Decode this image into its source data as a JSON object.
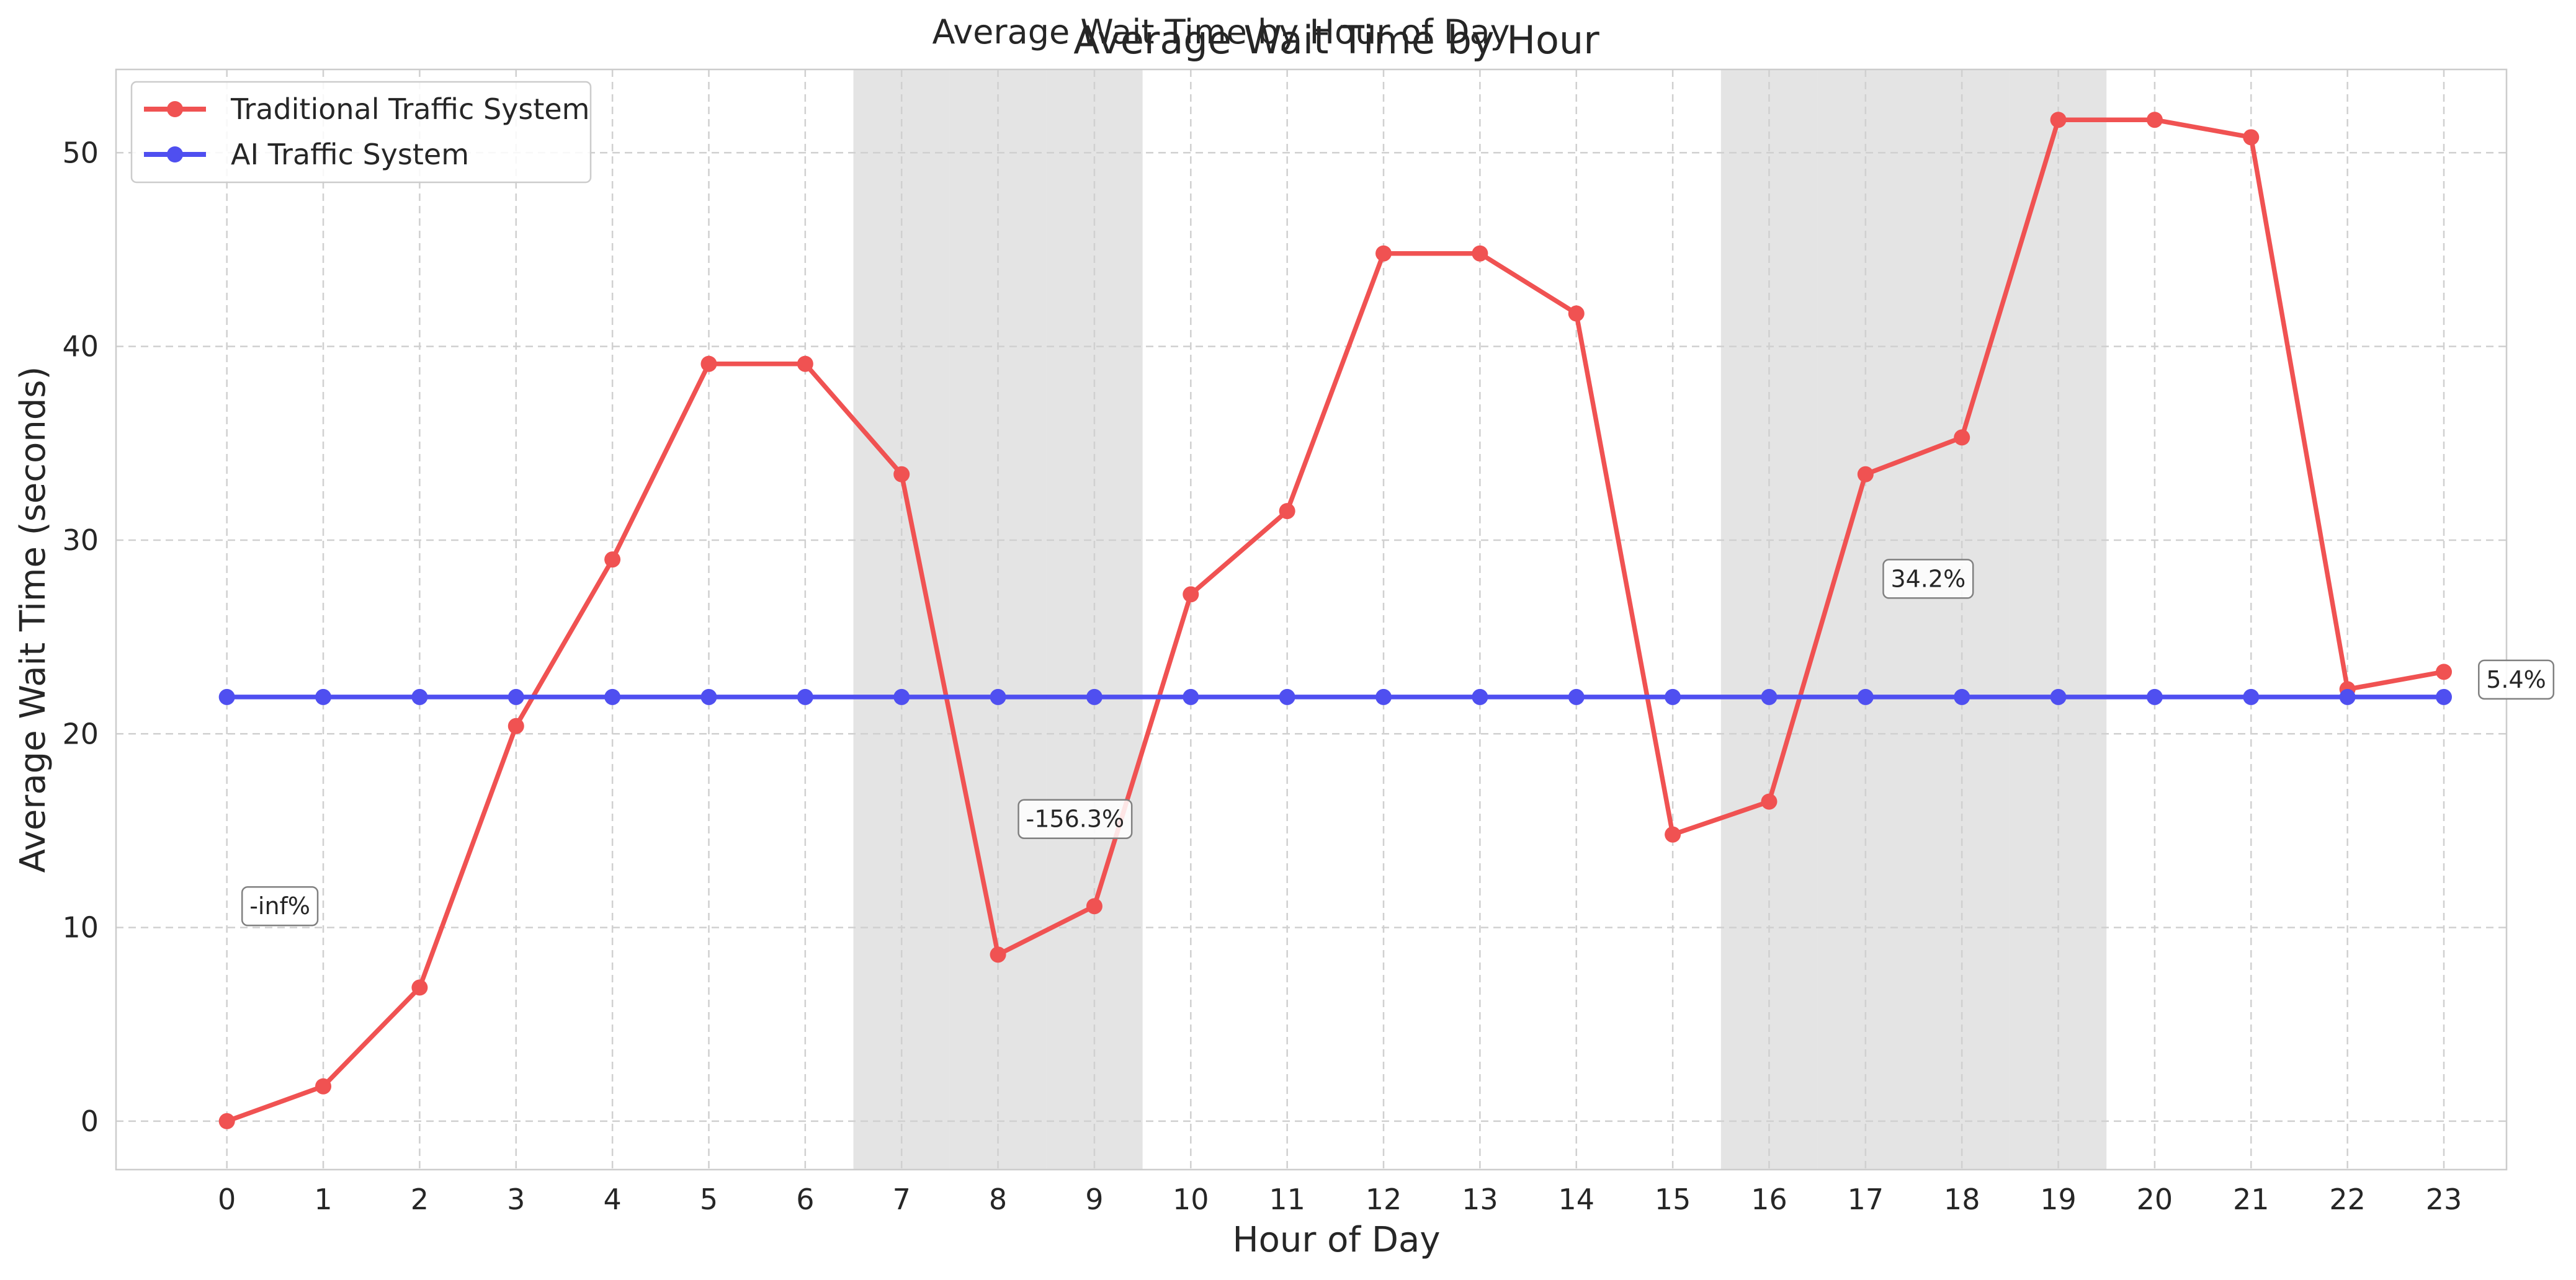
{
  "chart_data": {
    "type": "line",
    "title": "Average Wait Time by Hour",
    "subtitle": "Average Wait Time by Hour of Day",
    "xlabel": "Hour of Day",
    "ylabel": "Average Wait Time (seconds)",
    "x": [
      0,
      1,
      2,
      3,
      4,
      5,
      6,
      7,
      8,
      9,
      10,
      11,
      12,
      13,
      14,
      15,
      16,
      17,
      18,
      19,
      20,
      21,
      22,
      23
    ],
    "xlim": [
      -1.15,
      23.65
    ],
    "ylim": [
      -2.5,
      54.3
    ],
    "yticks": [
      0,
      10,
      20,
      30,
      40,
      50
    ],
    "grid": true,
    "legend_position": "upper left",
    "series": [
      {
        "name": "Traditional Traffic System",
        "color": "#f05252",
        "values": [
          0.0,
          1.8,
          6.9,
          20.4,
          29.0,
          39.1,
          39.1,
          33.4,
          8.6,
          11.1,
          27.2,
          31.5,
          44.8,
          44.8,
          41.7,
          14.8,
          16.5,
          33.4,
          35.3,
          51.7,
          51.7,
          50.8,
          22.3,
          23.2
        ]
      },
      {
        "name": "AI Traffic System",
        "color": "#4f4ff0",
        "values": [
          21.9,
          21.9,
          21.9,
          21.9,
          21.9,
          21.9,
          21.9,
          21.9,
          21.9,
          21.9,
          21.9,
          21.9,
          21.9,
          21.9,
          21.9,
          21.9,
          21.9,
          21.9,
          21.9,
          21.9,
          21.9,
          21.9,
          21.9,
          21.9
        ]
      }
    ],
    "shaded_hours": [
      7,
      8,
      9,
      16,
      17,
      18,
      19
    ],
    "annotations": [
      {
        "text": "-inf%",
        "x": 0.55,
        "y": 11.1
      },
      {
        "text": "-156.3%",
        "x": 8.8,
        "y": 15.6
      },
      {
        "text": "34.2%",
        "x": 17.65,
        "y": 28.0
      },
      {
        "text": "5.4%",
        "x": 23.75,
        "y": 22.8
      }
    ]
  }
}
